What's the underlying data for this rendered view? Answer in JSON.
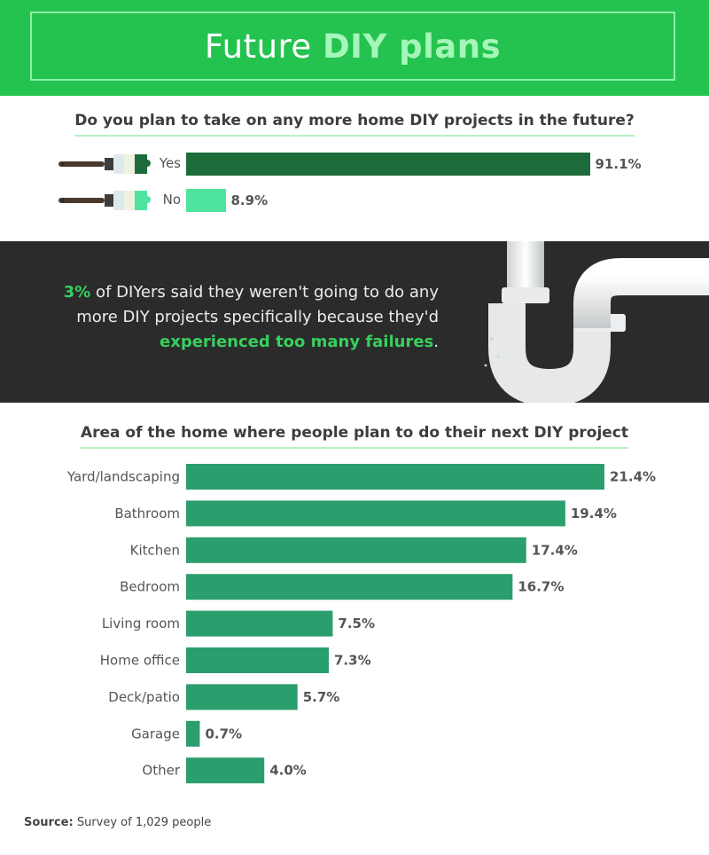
{
  "header": {
    "title_prefix": "Future",
    "title_highlight": "DIY plans"
  },
  "colors": {
    "header_bg": "#24c24f",
    "yes_bar": "#1e6b3c",
    "no_bar": "#4fe3a0",
    "area_bar": "#2b9e6d",
    "highlight_green": "#36d05d"
  },
  "chart_data": [
    {
      "type": "bar",
      "orientation": "horizontal",
      "title": "Do you plan to take on any more home DIY projects in the future?",
      "categories": [
        "Yes",
        "No"
      ],
      "values": [
        91.1,
        8.9
      ],
      "value_labels": [
        "91.1%",
        "8.9%"
      ],
      "xlim": [
        0,
        100
      ]
    },
    {
      "type": "bar",
      "orientation": "horizontal",
      "title": "Area of the home where people plan to do their next DIY project",
      "categories": [
        "Yard/landscaping",
        "Bathroom",
        "Kitchen",
        "Bedroom",
        "Living room",
        "Home office",
        "Deck/patio",
        "Garage",
        "Other"
      ],
      "values": [
        21.4,
        19.4,
        17.4,
        16.7,
        7.5,
        7.3,
        5.7,
        0.7,
        4.0
      ],
      "value_labels": [
        "21.4%",
        "19.4%",
        "17.4%",
        "16.7%",
        "7.5%",
        "7.3%",
        "5.7%",
        "0.7%",
        "4.0%"
      ],
      "xlim": [
        0,
        21.4
      ]
    }
  ],
  "banner": {
    "stat": "3%",
    "text_part1": " of DIYers said they weren't going to do any more DIY projects specifically because they'd ",
    "highlight": "experienced too many failures",
    "end": "."
  },
  "source": {
    "label": "Source:",
    "text": " Survey of 1,029 people"
  }
}
